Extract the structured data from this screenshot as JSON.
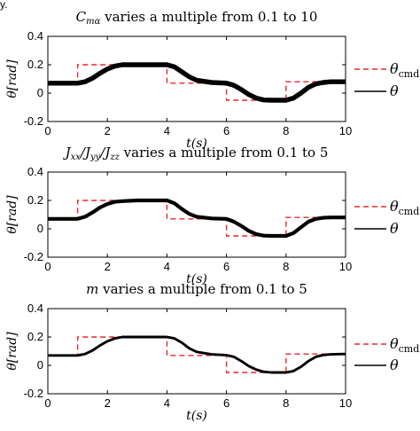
{
  "top_caption_fragment": "y.",
  "chart_data": [
    {
      "type": "line",
      "title": "C varies a multiple from 0.1 to 10",
      "title_math": {
        "base": "C",
        "sub": "mα",
        "rest": " varies a multiple from 0.1 to 10"
      },
      "xlabel": "t(s)",
      "ylabel": "θ[rad]",
      "xlim": [
        0,
        10
      ],
      "ylim": [
        -0.2,
        0.4
      ],
      "xticks": [
        "0",
        "2",
        "4",
        "6",
        "8",
        "10"
      ],
      "yticks": [
        "-0.2",
        "0",
        "0.2",
        "0.4"
      ],
      "grid": false,
      "legend": "outside-right",
      "response_band": 0.012,
      "series": [
        {
          "name": "θcmd",
          "style": "dashed",
          "color": "#e8262e",
          "x": [
            0,
            1,
            1,
            4,
            4,
            6,
            6,
            8,
            8,
            10
          ],
          "y": [
            0.07,
            0.07,
            0.2,
            0.2,
            0.07,
            0.07,
            -0.05,
            -0.05,
            0.08,
            0.08
          ]
        },
        {
          "name": "θ",
          "style": "solid",
          "color": "#000000",
          "x": [
            0,
            1,
            1.25,
            1.5,
            1.75,
            2,
            2.25,
            2.5,
            3,
            3.5,
            4,
            4.25,
            4.5,
            4.75,
            5,
            5.5,
            6,
            6.25,
            6.5,
            6.75,
            7,
            7.25,
            7.5,
            8,
            8.25,
            8.5,
            8.75,
            9,
            9.25,
            9.5,
            10
          ],
          "y": [
            0.07,
            0.07,
            0.08,
            0.105,
            0.14,
            0.17,
            0.19,
            0.2,
            0.2,
            0.2,
            0.2,
            0.185,
            0.15,
            0.115,
            0.09,
            0.075,
            0.07,
            0.055,
            0.025,
            -0.01,
            -0.035,
            -0.048,
            -0.05,
            -0.05,
            -0.035,
            0.0,
            0.04,
            0.065,
            0.075,
            0.08,
            0.08
          ]
        }
      ]
    },
    {
      "type": "line",
      "title": "Jxx/Jyy/Jzz varies a multiple from 0.1 to 5",
      "title_math": {
        "parts": [
          [
            "J",
            "xx"
          ],
          [
            "/J",
            "yy"
          ],
          [
            "/J",
            "zz"
          ]
        ],
        "rest": " varies a multiple from 0.1 to 5"
      },
      "xlabel": "t(s)",
      "ylabel": "θ[rad]",
      "xlim": [
        0,
        10
      ],
      "ylim": [
        -0.2,
        0.4
      ],
      "xticks": [
        "0",
        "2",
        "4",
        "6",
        "8",
        "10"
      ],
      "yticks": [
        "-0.2",
        "0",
        "0.2",
        "0.4"
      ],
      "grid": false,
      "legend": "outside-right",
      "response_band": 0.008,
      "series": [
        {
          "name": "θcmd",
          "style": "dashed",
          "color": "#e8262e",
          "x": [
            0,
            1,
            1,
            4,
            4,
            6,
            6,
            8,
            8,
            10
          ],
          "y": [
            0.07,
            0.07,
            0.2,
            0.2,
            0.07,
            0.07,
            -0.05,
            -0.05,
            0.08,
            0.08
          ]
        },
        {
          "name": "θ",
          "style": "solid",
          "color": "#000000",
          "x": [
            0,
            1,
            1.25,
            1.5,
            1.75,
            2,
            2.25,
            2.5,
            3,
            3.5,
            4,
            4.25,
            4.5,
            4.75,
            5,
            5.5,
            6,
            6.25,
            6.5,
            6.75,
            7,
            7.25,
            7.5,
            8,
            8.25,
            8.5,
            8.75,
            9,
            9.25,
            9.5,
            10
          ],
          "y": [
            0.07,
            0.07,
            0.085,
            0.115,
            0.15,
            0.175,
            0.19,
            0.195,
            0.2,
            0.2,
            0.2,
            0.18,
            0.14,
            0.105,
            0.085,
            0.073,
            0.07,
            0.05,
            0.02,
            -0.015,
            -0.038,
            -0.048,
            -0.05,
            -0.05,
            -0.03,
            0.01,
            0.05,
            0.07,
            0.078,
            0.08,
            0.08
          ]
        }
      ]
    },
    {
      "type": "line",
      "title": "m varies a multiple from 0.1 to 5",
      "title_math": {
        "base": "m",
        "sub": "",
        "rest": " varies a multiple from 0.1 to 5"
      },
      "xlabel": "t(s)",
      "ylabel": "θ[rad]",
      "xlim": [
        0,
        10
      ],
      "ylim": [
        -0.2,
        0.4
      ],
      "xticks": [
        "0",
        "2",
        "4",
        "6",
        "8",
        "10"
      ],
      "yticks": [
        "-0.2",
        "0",
        "0.2",
        "0.4"
      ],
      "grid": false,
      "legend": "outside-right",
      "response_band": 0.004,
      "series": [
        {
          "name": "θcmd",
          "style": "dashed",
          "color": "#e8262e",
          "x": [
            0,
            1,
            1,
            4,
            4,
            6,
            6,
            8,
            8,
            10
          ],
          "y": [
            0.07,
            0.07,
            0.2,
            0.2,
            0.07,
            0.07,
            -0.05,
            -0.05,
            0.08,
            0.08
          ]
        },
        {
          "name": "θ",
          "style": "solid",
          "color": "#000000",
          "x": [
            0,
            1,
            1.25,
            1.5,
            1.75,
            2,
            2.25,
            2.5,
            3,
            3.5,
            4,
            4.25,
            4.5,
            4.75,
            5,
            5.5,
            6,
            6.25,
            6.5,
            6.75,
            7,
            7.25,
            7.5,
            8,
            8.25,
            8.5,
            8.75,
            9,
            9.25,
            9.5,
            10
          ],
          "y": [
            0.07,
            0.07,
            0.08,
            0.105,
            0.14,
            0.17,
            0.19,
            0.2,
            0.2,
            0.2,
            0.2,
            0.19,
            0.16,
            0.12,
            0.095,
            0.078,
            0.072,
            0.06,
            0.03,
            -0.005,
            -0.03,
            -0.045,
            -0.05,
            -0.05,
            -0.04,
            -0.01,
            0.03,
            0.06,
            0.073,
            0.078,
            0.08
          ]
        }
      ]
    }
  ]
}
